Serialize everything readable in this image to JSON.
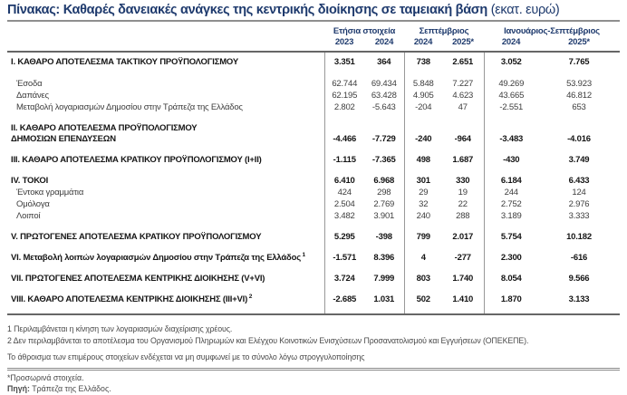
{
  "title": {
    "main": "Πίνακας: Καθαρές δανειακές ανάγκες της κεντρικής διοίκησης σε ταμειακή βάση",
    "unit": "(εκατ. ευρώ)"
  },
  "table": {
    "column_groups": [
      {
        "label": "Ετήσια στοιχεία",
        "years": [
          "2023",
          "2024"
        ]
      },
      {
        "label": "Σεπτέμβριος",
        "years": [
          "2024",
          "2025*"
        ]
      },
      {
        "label": "Ιανουάριος-Σεπτέμβριος",
        "years": [
          "2024",
          "2025*"
        ]
      }
    ],
    "rows": [
      {
        "kind": "section",
        "label": "Ι. ΚΑΘΑΡΟ ΑΠΟΤΕΛΕΣΜΑ ΤΑΚΤΙΚΟΥ ΠΡΟΫΠΟΛΟΓΙΣΜΟΥ",
        "values": [
          "3.351",
          "364",
          "738",
          "2.651",
          "3.052",
          "7.765"
        ]
      },
      {
        "kind": "detail-first",
        "label": "Έσοδα",
        "values": [
          "62.744",
          "69.434",
          "5.848",
          "7.227",
          "49.269",
          "53.923"
        ]
      },
      {
        "kind": "detail",
        "label": "Δαπάνες",
        "values": [
          "62.195",
          "63.428",
          "4.905",
          "4.623",
          "43.665",
          "46.812"
        ]
      },
      {
        "kind": "detail",
        "label": "Μεταβολή λογαριασμών Δημοσίου στην Τράπεζα της Ελλάδος",
        "values": [
          "2.802",
          "-5.643",
          "-204",
          "47",
          "-2.551",
          "653"
        ]
      },
      {
        "kind": "section",
        "label_lines": [
          "ΙΙ. ΚΑΘΑΡΟ ΑΠΟΤΕΛΕΣΜΑ ΠΡΟΫΠΟΛΟΓΙΣΜΟΥ",
          "ΔΗΜΟΣΙΩΝ ΕΠΕΝΔΥΣΕΩΝ"
        ],
        "values": [
          "-4.466",
          "-7.729",
          "-240",
          "-964",
          "-3.483",
          "-4.016"
        ]
      },
      {
        "kind": "section",
        "label": "ΙΙΙ. ΚΑΘΑΡΟ ΑΠΟΤΕΛΕΣΜΑ ΚΡΑΤΙΚΟΥ ΠΡΟΫΠΟΛΟΓΙΣΜΟΥ (Ι+ΙΙ)",
        "values": [
          "-1.115",
          "-7.365",
          "498",
          "1.687",
          "-430",
          "3.749"
        ]
      },
      {
        "kind": "section",
        "label": "IV. ΤΟΚΟΙ",
        "values": [
          "6.410",
          "6.968",
          "301",
          "330",
          "6.184",
          "6.433"
        ]
      },
      {
        "kind": "detail",
        "label": "Έντοκα γραμμάτια",
        "values": [
          "424",
          "298",
          "29",
          "19",
          "244",
          "124"
        ]
      },
      {
        "kind": "detail",
        "label": "Ομόλογα",
        "values": [
          "2.504",
          "2.769",
          "32",
          "22",
          "2.752",
          "2.976"
        ]
      },
      {
        "kind": "detail",
        "label": "Λοιποί",
        "values": [
          "3.482",
          "3.901",
          "240",
          "288",
          "3.189",
          "3.333"
        ]
      },
      {
        "kind": "section",
        "label": "V. ΠΡΩΤΟΓΕΝΕΣ ΑΠΟΤΕΛΕΣΜΑ ΚΡΑΤΙΚΟΥ ΠΡΟΫΠΟΛΟΓΙΣΜΟΥ",
        "values": [
          "5.295",
          "-398",
          "799",
          "2.017",
          "5.754",
          "10.182"
        ]
      },
      {
        "kind": "section",
        "label": "VI. Μεταβολή λοιπών λογαριασμών Δημοσίου στην Τράπεζα της Ελλάδος",
        "sup": "1",
        "values": [
          "-1.571",
          "8.396",
          "4",
          "-277",
          "2.300",
          "-616"
        ]
      },
      {
        "kind": "section",
        "label": "VII. ΠΡΩΤΟΓΕΝΕΣ ΑΠΟΤΕΛΕΣΜΑ ΚΕΝΤΡΙΚΗΣ ΔΙΟΙΚΗΣΗΣ (V+VI)",
        "values": [
          "3.724",
          "7.999",
          "803",
          "1.740",
          "8.054",
          "9.566"
        ]
      },
      {
        "kind": "section",
        "label": "VIII. ΚΑΘΑΡΟ ΑΠΟΤΕΛΕΣΜΑ ΚΕΝΤΡΙΚΗΣ ΔΙΟΙΚΗΣΗΣ (III+VI)",
        "sup": "2",
        "values": [
          "-2.685",
          "1.031",
          "502",
          "1.410",
          "1.870",
          "3.133"
        ]
      }
    ]
  },
  "footnotes": [
    "1 Περιλαμβάνεται η κίνηση των λογαριασμών διαχείρισης χρέους.",
    "2 Δεν περιλαμβάνεται το αποτέλεσμα του Οργανισμού Πληρωμών και Ελέγχου Κοινοτικών Ενισχύσεων Προσανατολισμού και Εγγυήσεων (ΟΠΕΚΕΠΕ).",
    "Το άθροισμα των επιμέρους στοιχείων ενδέχεται να μη συμφωνεί με το σύνολο λόγω στρογγυλοποίησης"
  ],
  "provisional_note": "*Προσωρινά στοιχεία.",
  "source": {
    "label": "Πηγή:",
    "text": "Τράπεζα της Ελλάδος."
  },
  "colors": {
    "title_navy": "#1e3a6d",
    "body_text": "#3d3d3d",
    "rule_gray": "#666666"
  }
}
